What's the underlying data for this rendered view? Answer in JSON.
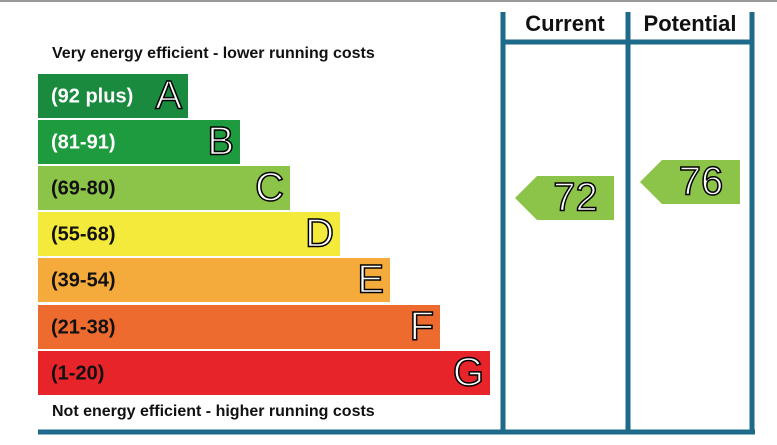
{
  "header": {
    "current": "Current",
    "potential": "Potential"
  },
  "top_note": "Very energy efficient - lower running costs",
  "bottom_note": "Not energy efficient - higher running costs",
  "bands": [
    {
      "range": "(92 plus)",
      "letter": "A",
      "color": "#1a8a3f"
    },
    {
      "range": "(81-91)",
      "letter": "B",
      "color": "#1d9b3e"
    },
    {
      "range": "(69-80)",
      "letter": "C",
      "color": "#8cc449"
    },
    {
      "range": "(55-68)",
      "letter": "D",
      "color": "#f4ea3c"
    },
    {
      "range": "(39-54)",
      "letter": "E",
      "color": "#f5ab3c"
    },
    {
      "range": "(21-38)",
      "letter": "F",
      "color": "#ee6b2f"
    },
    {
      "range": "(1-20)",
      "letter": "G",
      "color": "#e8242b"
    }
  ],
  "current": {
    "value": 72
  },
  "potential": {
    "value": 76
  }
}
